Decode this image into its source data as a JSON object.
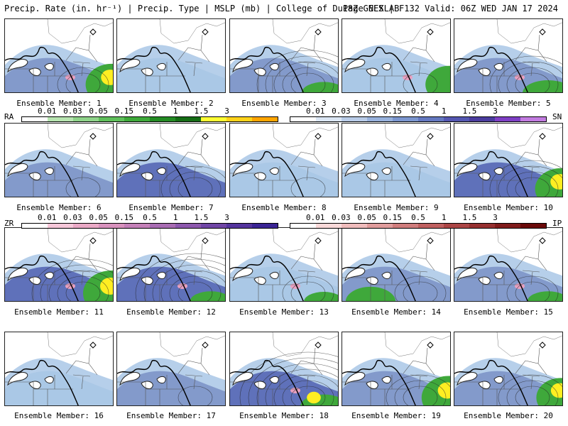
{
  "header": {
    "left": "Precip. Rate (in. hr⁻¹) | Precip. Type | MSLP (mb) | College of DuPage NEXLAB",
    "right": "18Z GEFS | F132 Valid: 06Z WED JAN 17 2024"
  },
  "members": [
    {
      "label": "Ensemble Member: 1"
    },
    {
      "label": "Ensemble Member: 2"
    },
    {
      "label": "Ensemble Member: 3"
    },
    {
      "label": "Ensemble Member: 4"
    },
    {
      "label": "Ensemble Member: 5"
    },
    {
      "label": "Ensemble Member: 6"
    },
    {
      "label": "Ensemble Member: 7"
    },
    {
      "label": "Ensemble Member: 8"
    },
    {
      "label": "Ensemble Member: 9"
    },
    {
      "label": "Ensemble Member: 10"
    },
    {
      "label": "Ensemble Member: 11"
    },
    {
      "label": "Ensemble Member: 12"
    },
    {
      "label": "Ensemble Member: 13"
    },
    {
      "label": "Ensemble Member: 14"
    },
    {
      "label": "Ensemble Member: 15"
    },
    {
      "label": "Ensemble Member: 16"
    },
    {
      "label": "Ensemble Member: 17"
    },
    {
      "label": "Ensemble Member: 18"
    },
    {
      "label": "Ensemble Member: 19"
    },
    {
      "label": "Ensemble Member: 20"
    }
  ],
  "legends": {
    "ra": {
      "cap": "RA",
      "ticks": [
        "0.01",
        "0.03",
        "0.05",
        "0.15",
        "0.5",
        "1",
        "1.5",
        "3"
      ],
      "colors": [
        "#ffffff",
        "#b7e4b0",
        "#8fd38a",
        "#5fbf5a",
        "#3ea93a",
        "#238b23",
        "#156d15",
        "#ffff33",
        "#ffd21a",
        "#ffa500"
      ]
    },
    "sn": {
      "cap": "SN",
      "ticks": [
        "0.01",
        "0.03",
        "0.05",
        "0.15",
        "0.5",
        "1",
        "1.5",
        "3"
      ],
      "colors": [
        "#ffffff",
        "#dbe6f4",
        "#b9cce8",
        "#97b1dc",
        "#7b96cf",
        "#6478c0",
        "#5457b1",
        "#4a3c9e",
        "#7e3fc4",
        "#c27be0"
      ]
    },
    "zr": {
      "cap": "ZR",
      "ticks": [
        "0.01",
        "0.03",
        "0.05",
        "0.15",
        "0.5",
        "1",
        "1.5",
        "3"
      ],
      "colors": [
        "#ffffff",
        "#f6c7d9",
        "#eaa9c6",
        "#d892bd",
        "#c480b8",
        "#a86cb3",
        "#8d58ad",
        "#7046a6",
        "#54349d",
        "#3a2494"
      ]
    },
    "ip": {
      "cap": "IP",
      "ticks": [
        "0.01",
        "0.03",
        "0.05",
        "0.15",
        "0.5",
        "1",
        "1.5",
        "3"
      ],
      "colors": [
        "#ffffff",
        "#f9d9d9",
        "#efbcbc",
        "#e09c9c",
        "#d07d7d",
        "#bf6060",
        "#ab4545",
        "#963030",
        "#801c1c",
        "#6a0a0a"
      ]
    }
  },
  "colors": {
    "snow_light": "#a9c7e6",
    "snow_mid": "#7d93c8",
    "snow_dark": "#5566b5",
    "rain_green": "#3fa83b",
    "rain_dark": "#1f7d1f",
    "heavy_yellow": "#ffee22",
    "mix_pink": "#e8a0c0",
    "map_lines": "#222222"
  }
}
